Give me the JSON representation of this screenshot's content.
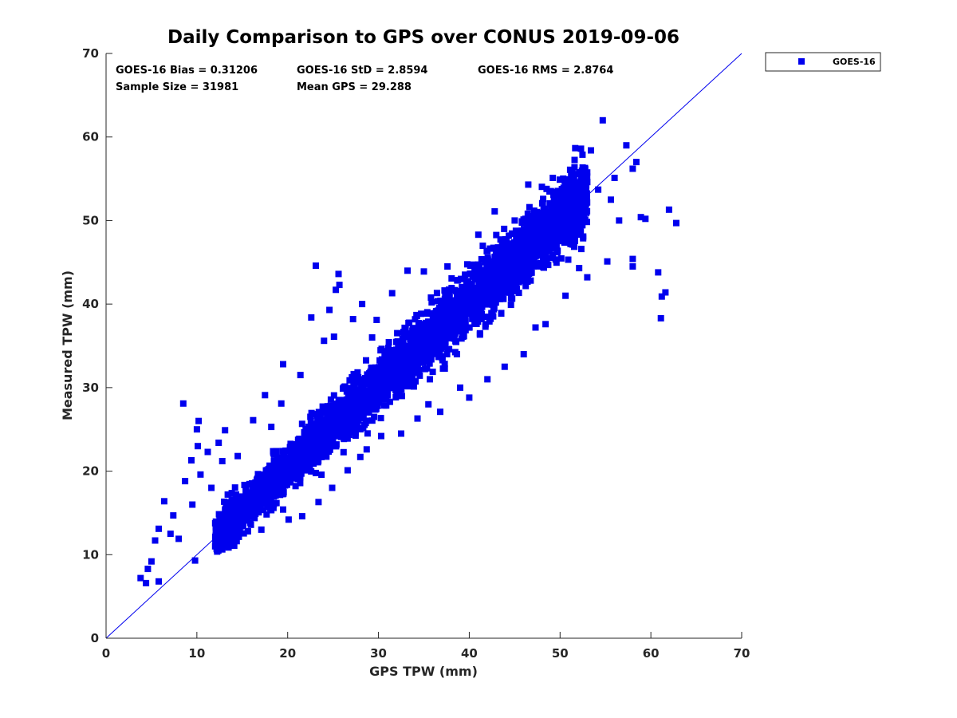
{
  "chart_data": {
    "type": "scatter",
    "title": "Daily Comparison to GPS over CONUS 2019-09-06",
    "xlabel": "GPS TPW (mm)",
    "ylabel": "Measured TPW (mm)",
    "xlim": [
      0,
      70
    ],
    "ylim": [
      0,
      70
    ],
    "x_ticks": [
      "0",
      "10",
      "20",
      "30",
      "40",
      "50",
      "60",
      "70"
    ],
    "y_ticks": [
      "0",
      "10",
      "20",
      "30",
      "40",
      "50",
      "60",
      "70"
    ],
    "grid": false,
    "legend_position": "outside top-right",
    "marker_color": "#0000ee",
    "one_to_one_line": {
      "from": [
        0,
        0
      ],
      "to": [
        70,
        70
      ],
      "color": "#0000ee"
    },
    "stats": {
      "bias": "GOES-16 Bias = 0.31206",
      "std": "GOES-16 StD = 2.8594",
      "rms": "GOES-16 RMS = 2.8764",
      "sample_size": "Sample Size = 31981",
      "mean_gps": "Mean GPS = 29.288"
    },
    "series": [
      {
        "name": "GOES-16",
        "points": [
          [
            3.8,
            7.2
          ],
          [
            4.4,
            6.6
          ],
          [
            4.6,
            8.3
          ],
          [
            5.0,
            9.2
          ],
          [
            5.4,
            11.7
          ],
          [
            5.8,
            13.1
          ],
          [
            5.8,
            6.8
          ],
          [
            6.4,
            16.4
          ],
          [
            7.1,
            12.5
          ],
          [
            7.4,
            14.7
          ],
          [
            8.0,
            11.9
          ],
          [
            8.5,
            28.1
          ],
          [
            8.7,
            18.8
          ],
          [
            9.4,
            21.3
          ],
          [
            9.5,
            16.0
          ],
          [
            9.8,
            9.3
          ],
          [
            10.0,
            25.0
          ],
          [
            10.2,
            26.0
          ],
          [
            10.1,
            23.0
          ],
          [
            10.4,
            19.6
          ],
          [
            11.2,
            22.3
          ],
          [
            11.6,
            18.0
          ],
          [
            12.1,
            11.5
          ],
          [
            12.4,
            23.4
          ],
          [
            12.8,
            21.2
          ],
          [
            13.1,
            24.9
          ],
          [
            13.4,
            17.2
          ],
          [
            14.5,
            21.8
          ],
          [
            15.0,
            14.5
          ],
          [
            16.2,
            26.1
          ],
          [
            17.1,
            13.0
          ],
          [
            17.5,
            29.1
          ],
          [
            18.2,
            25.3
          ],
          [
            19.3,
            28.1
          ],
          [
            19.5,
            15.4
          ],
          [
            19.5,
            32.8
          ],
          [
            20.1,
            14.2
          ],
          [
            21.4,
            31.5
          ],
          [
            21.6,
            14.6
          ],
          [
            22.5,
            26.5
          ],
          [
            22.6,
            38.4
          ],
          [
            23.1,
            44.6
          ],
          [
            23.4,
            16.3
          ],
          [
            24.0,
            35.6
          ],
          [
            24.6,
            39.3
          ],
          [
            24.9,
            18.0
          ],
          [
            25.1,
            36.1
          ],
          [
            25.3,
            41.7
          ],
          [
            25.6,
            43.6
          ],
          [
            25.7,
            42.3
          ],
          [
            26.6,
            20.1
          ],
          [
            27.2,
            38.2
          ],
          [
            28.0,
            21.7
          ],
          [
            28.2,
            40.0
          ],
          [
            28.7,
            22.6
          ],
          [
            29.3,
            36.0
          ],
          [
            29.8,
            38.1
          ],
          [
            30.3,
            24.2
          ],
          [
            31.5,
            41.3
          ],
          [
            32.5,
            24.5
          ],
          [
            33.2,
            44.0
          ],
          [
            34.3,
            26.3
          ],
          [
            35.0,
            43.9
          ],
          [
            35.5,
            28.0
          ],
          [
            36.8,
            27.1
          ],
          [
            37.6,
            44.5
          ],
          [
            39.0,
            30.0
          ],
          [
            40.0,
            28.8
          ],
          [
            41.0,
            48.3
          ],
          [
            42.0,
            31.0
          ],
          [
            42.8,
            51.1
          ],
          [
            43.9,
            32.5
          ],
          [
            45.0,
            50.0
          ],
          [
            46.0,
            34.0
          ],
          [
            46.5,
            54.3
          ],
          [
            47.3,
            37.2
          ],
          [
            48.1,
            52.1
          ],
          [
            48.4,
            37.6
          ],
          [
            49.2,
            55.1
          ],
          [
            50.6,
            41.0
          ],
          [
            51.2,
            54.0
          ],
          [
            52.1,
            44.3
          ],
          [
            52.3,
            58.6
          ],
          [
            53.0,
            43.2
          ],
          [
            53.4,
            58.4
          ],
          [
            54.2,
            53.7
          ],
          [
            54.7,
            62.0
          ],
          [
            55.2,
            45.1
          ],
          [
            55.6,
            52.5
          ],
          [
            56.0,
            55.1
          ],
          [
            56.5,
            50.0
          ],
          [
            57.3,
            59.0
          ],
          [
            58.0,
            56.2
          ],
          [
            58.0,
            44.5
          ],
          [
            58.4,
            57.0
          ],
          [
            58.0,
            45.4
          ],
          [
            58.9,
            50.4
          ],
          [
            59.4,
            50.2
          ],
          [
            60.8,
            43.8
          ],
          [
            61.1,
            38.3
          ],
          [
            61.2,
            40.9
          ],
          [
            61.6,
            41.4
          ],
          [
            62.0,
            51.3
          ],
          [
            62.8,
            49.7
          ]
        ]
      }
    ]
  }
}
